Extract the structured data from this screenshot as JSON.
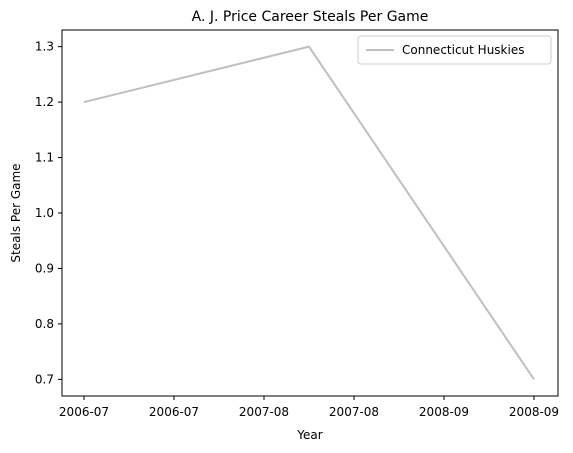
{
  "chart_data": {
    "type": "line",
    "title": "A. J. Price Career Steals Per Game",
    "xlabel": "Year",
    "ylabel": "Steals Per Game",
    "x_tick_labels": [
      "2006-07",
      "2006-07",
      "2007-08",
      "2007-08",
      "2008-09",
      "2008-09"
    ],
    "series": [
      {
        "name": "Connecticut Huskies",
        "color": "#bfbfbf",
        "points": [
          {
            "x": "2006-07",
            "y": 1.2
          },
          {
            "x": "2007-08",
            "y": 1.3
          },
          {
            "x": "2008-09",
            "y": 0.7
          }
        ]
      }
    ],
    "y_ticks": [
      0.7,
      0.8,
      0.9,
      1.0,
      1.1,
      1.2,
      1.3
    ],
    "y_tick_labels": [
      "0.7",
      "0.8",
      "0.9",
      "1.0",
      "1.1",
      "1.2",
      "1.3"
    ],
    "ylim": [
      0.67,
      1.33
    ],
    "grid": false,
    "legend_position": "top-right"
  }
}
